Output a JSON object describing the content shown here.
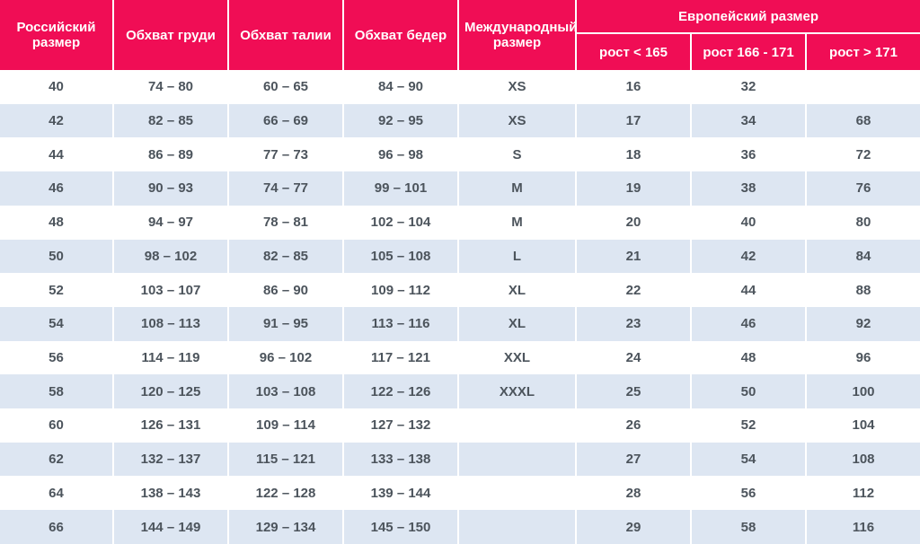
{
  "colors": {
    "header_bg": "#F00D55",
    "header_text": "#FFFFFF",
    "row_bg": "#FFFFFF",
    "row_alt_bg": "#DDE6F2",
    "body_text": "#4C545C",
    "divider": "#FFFFFF"
  },
  "chart_data": {
    "type": "table",
    "header": {
      "russian_size": "Российский размер",
      "chest": "Обхват груди",
      "waist": "Обхват талии",
      "hips": "Обхват бедер",
      "international_size": "Международный размер",
      "european_size": "Европейский размер",
      "height_lt_165": "рост < 165",
      "height_166_171": "рост 166 - 171",
      "height_gt_171": "рост > 171"
    },
    "columns": [
      "Российский размер",
      "Обхват груди",
      "Обхват талии",
      "Обхват бедер",
      "Международный размер",
      "Европейский размер / рост < 165",
      "Европейский размер / рост 166 - 171",
      "Европейский размер / рост > 171"
    ],
    "rows": [
      [
        "40",
        "74 – 80",
        "60 – 65",
        "84 – 90",
        "XS",
        "16",
        "32",
        ""
      ],
      [
        "42",
        "82 – 85",
        "66 – 69",
        "92 – 95",
        "XS",
        "17",
        "34",
        "68"
      ],
      [
        "44",
        "86 – 89",
        "77 – 73",
        "96 – 98",
        "S",
        "18",
        "36",
        "72"
      ],
      [
        "46",
        "90 – 93",
        "74 – 77",
        "99 – 101",
        "M",
        "19",
        "38",
        "76"
      ],
      [
        "48",
        "94 – 97",
        "78 – 81",
        "102 – 104",
        "M",
        "20",
        "40",
        "80"
      ],
      [
        "50",
        "98 – 102",
        "82 – 85",
        "105 – 108",
        "L",
        "21",
        "42",
        "84"
      ],
      [
        "52",
        "103 – 107",
        "86 – 90",
        "109 – 112",
        "XL",
        "22",
        "44",
        "88"
      ],
      [
        "54",
        "108 – 113",
        "91 – 95",
        "113 – 116",
        "XL",
        "23",
        "46",
        "92"
      ],
      [
        "56",
        "114 – 119",
        "96 – 102",
        "117 – 121",
        "XXL",
        "24",
        "48",
        "96"
      ],
      [
        "58",
        "120 – 125",
        "103 – 108",
        "122 – 126",
        "XXXL",
        "25",
        "50",
        "100"
      ],
      [
        "60",
        "126 – 131",
        "109 – 114",
        "127 – 132",
        "",
        "26",
        "52",
        "104"
      ],
      [
        "62",
        "132 – 137",
        "115 – 121",
        "133 – 138",
        "",
        "27",
        "54",
        "108"
      ],
      [
        "64",
        "138 – 143",
        "122 – 128",
        "139 – 144",
        "",
        "28",
        "56",
        "112"
      ],
      [
        "66",
        "144 – 149",
        "129 – 134",
        "145 – 150",
        "",
        "29",
        "58",
        "116"
      ]
    ]
  }
}
